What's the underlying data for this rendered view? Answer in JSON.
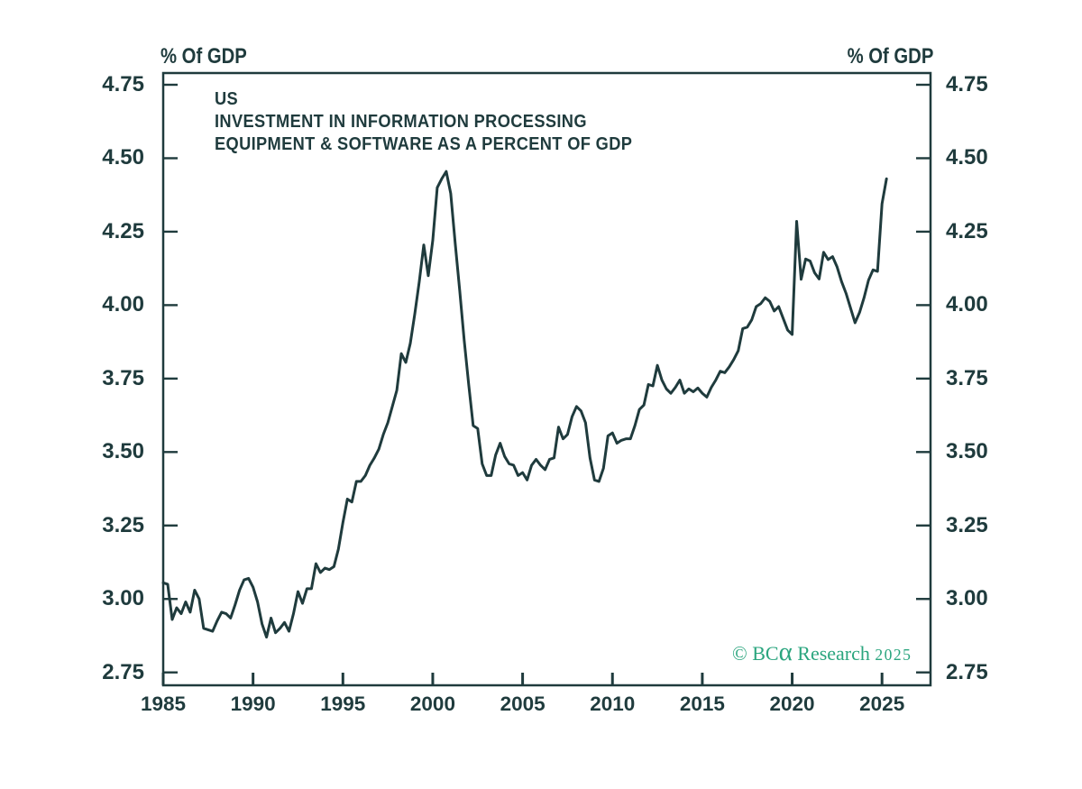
{
  "page": {
    "background": "#ffffff"
  },
  "chart_data": {
    "type": "line",
    "title_lines": [
      "US",
      "INVESTMENT IN INFORMATION PROCESSING",
      "EQUIPMENT & SOFTWARE AS A PERCENT OF GDP"
    ],
    "unit_label_left": "% Of GDP",
    "unit_label_right": "% Of GDP",
    "xlabel": "",
    "ylabel": "% Of GDP",
    "x_tick_labels": [
      "1985",
      "1990",
      "1995",
      "2000",
      "2005",
      "2010",
      "2015",
      "2020",
      "2025"
    ],
    "x_tick_values": [
      1985,
      1990,
      1995,
      2000,
      2005,
      2010,
      2015,
      2020,
      2025
    ],
    "y_tick_labels": [
      "2.75",
      "3.00",
      "3.25",
      "3.50",
      "3.75",
      "4.00",
      "4.25",
      "4.50",
      "4.75"
    ],
    "y_tick_values": [
      2.75,
      3.0,
      3.25,
      3.5,
      3.75,
      4.0,
      4.25,
      4.5,
      4.75
    ],
    "x_range": [
      1985,
      2027.7
    ],
    "y_range": [
      2.706,
      4.79
    ],
    "grid": "off",
    "legend": "none",
    "line_color": "#1f3b3d",
    "watermark_color": "#2aa57e",
    "watermark": {
      "prefix": "© BC",
      "alpha": "α",
      "middle": " Research ",
      "year": "2025"
    },
    "series": [
      {
        "name": "US investment in information processing equipment & software as a percent of GDP",
        "unit": "% of GDP",
        "frequency": "quarterly",
        "start": "1985Q1",
        "end": "2025Q2",
        "values": [
          3.055,
          3.05,
          2.93,
          2.97,
          2.95,
          2.99,
          2.955,
          3.03,
          3.0,
          2.9,
          2.895,
          2.89,
          2.925,
          2.955,
          2.95,
          2.935,
          2.98,
          3.03,
          3.065,
          3.07,
          3.04,
          2.99,
          2.915,
          2.87,
          2.935,
          2.885,
          2.9,
          2.92,
          2.89,
          2.95,
          3.025,
          2.985,
          3.035,
          3.035,
          3.12,
          3.09,
          3.105,
          3.1,
          3.11,
          3.17,
          3.26,
          3.34,
          3.33,
          3.4,
          3.4,
          3.42,
          3.455,
          3.48,
          3.51,
          3.56,
          3.6,
          3.655,
          3.71,
          3.835,
          3.805,
          3.87,
          3.97,
          4.08,
          4.205,
          4.1,
          4.22,
          4.4,
          4.43,
          4.455,
          4.38,
          4.21,
          4.05,
          3.88,
          3.73,
          3.59,
          3.58,
          3.46,
          3.42,
          3.42,
          3.49,
          3.53,
          3.485,
          3.46,
          3.455,
          3.42,
          3.43,
          3.405,
          3.455,
          3.475,
          3.455,
          3.44,
          3.475,
          3.48,
          3.585,
          3.545,
          3.56,
          3.62,
          3.655,
          3.64,
          3.6,
          3.48,
          3.405,
          3.4,
          3.445,
          3.555,
          3.565,
          3.53,
          3.54,
          3.545,
          3.545,
          3.59,
          3.645,
          3.66,
          3.73,
          3.725,
          3.795,
          3.745,
          3.715,
          3.7,
          3.72,
          3.745,
          3.7,
          3.715,
          3.705,
          3.718,
          3.7,
          3.687,
          3.72,
          3.745,
          3.775,
          3.77,
          3.79,
          3.815,
          3.845,
          3.92,
          3.925,
          3.95,
          3.995,
          4.005,
          4.025,
          4.013,
          3.98,
          3.995,
          3.955,
          3.915,
          3.9,
          4.285,
          4.088,
          4.157,
          4.15,
          4.11,
          4.089,
          4.18,
          4.155,
          4.165,
          4.13,
          4.08,
          4.04,
          3.99,
          3.94,
          3.975,
          4.025,
          4.085,
          4.12,
          4.115,
          4.345,
          4.43
        ]
      }
    ]
  }
}
